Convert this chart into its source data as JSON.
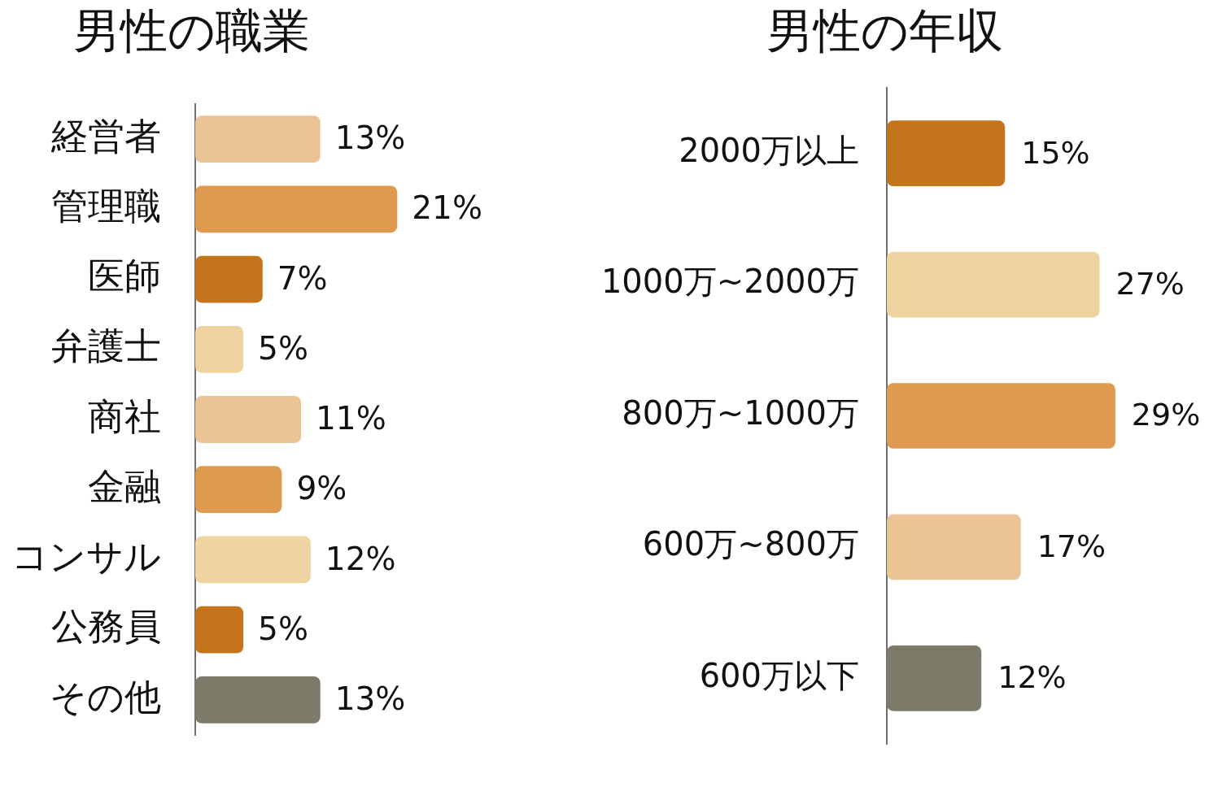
{
  "chart_data": [
    {
      "type": "bar",
      "orientation": "horizontal",
      "title": "男性の職業",
      "categories": [
        "経営者",
        "管理職",
        "医師",
        "弁護士",
        "商社",
        "金融",
        "コンサル",
        "公務員",
        "その他"
      ],
      "values": [
        13,
        21,
        7,
        5,
        11,
        9,
        12,
        5,
        13
      ],
      "value_labels": [
        "13%",
        "21%",
        "7%",
        "5%",
        "11%",
        "9%",
        "12%",
        "5%",
        "13%"
      ],
      "colors": [
        "#ebc496",
        "#de9a4e",
        "#c4741b",
        "#efd3a0",
        "#ebc496",
        "#de9a4e",
        "#efd3a0",
        "#c4741b",
        "#7e7a69"
      ],
      "tick_labels": "y"
    },
    {
      "type": "bar",
      "orientation": "horizontal",
      "title": "男性の年収",
      "categories": [
        "2000万以上",
        "1000万~2000万",
        "800万~1000万",
        "600万~800万",
        "600万以下"
      ],
      "values": [
        15,
        27,
        29,
        17,
        12
      ],
      "value_labels": [
        "15%",
        "27%",
        "29%",
        "17%",
        "12%"
      ],
      "colors": [
        "#c4741b",
        "#edd39f",
        "#de9a4e",
        "#ebc496",
        "#7e7a69"
      ],
      "tick_labels": "y"
    }
  ]
}
